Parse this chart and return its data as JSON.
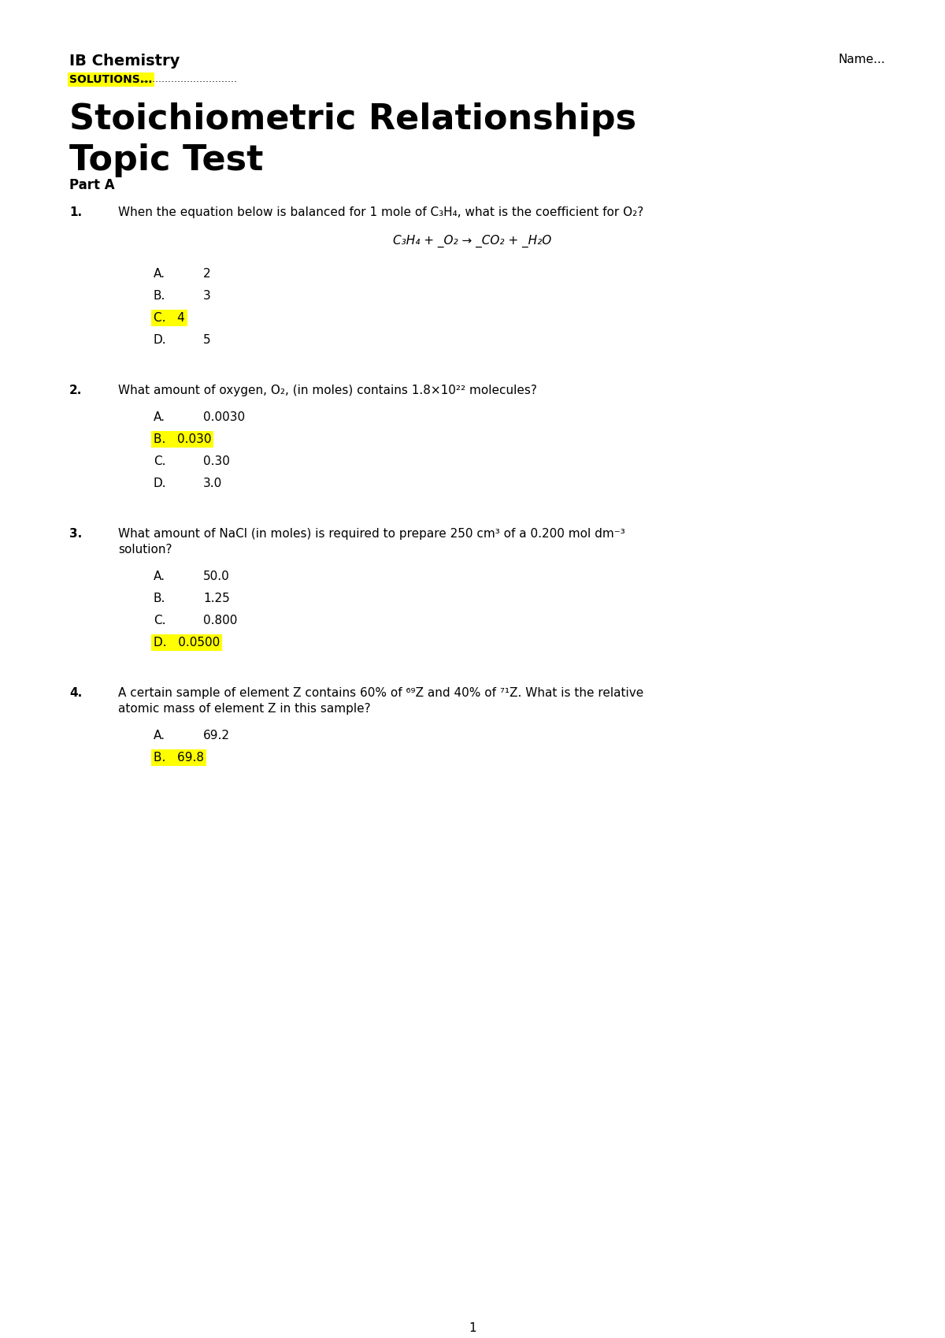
{
  "bg_color": "#ffffff",
  "highlight_color": "#ffff00",
  "header": {
    "ib_chemistry": "IB Chemistry",
    "solutions_highlighted": "SOLUTIONS...",
    "solutions_dots": "...............................",
    "name_label": "Name...",
    "title_line1": "Stoichiometric Relationships",
    "title_line2": "Topic Test",
    "part_a": "Part A"
  },
  "questions": [
    {
      "number": "1.",
      "text": "When the equation below is balanced for 1 mole of C₃H₄, what is the coefficient for O₂?",
      "equation": "C₃H₄ + _O₂ → _CO₂ + _H₂O",
      "has_equation": true,
      "options": [
        {
          "letter": "A.",
          "text": "2",
          "highlight": false
        },
        {
          "letter": "B.",
          "text": "3",
          "highlight": false
        },
        {
          "letter": "C.",
          "text": "4",
          "highlight": true
        },
        {
          "letter": "D.",
          "text": "5",
          "highlight": false
        }
      ]
    },
    {
      "number": "2.",
      "text": "What amount of oxygen, O₂, (in moles) contains 1.8×10²² molecules?",
      "has_equation": false,
      "options": [
        {
          "letter": "A.",
          "text": "0.0030",
          "highlight": false
        },
        {
          "letter": "B.",
          "text": "0.030",
          "highlight": true
        },
        {
          "letter": "C.",
          "text": "0.30",
          "highlight": false
        },
        {
          "letter": "D.",
          "text": "3.0",
          "highlight": false
        }
      ]
    },
    {
      "number": "3.",
      "text": "What amount of NaCl (in moles) is required to prepare 250 cm³ of a 0.200 mol dm⁻³",
      "text2": "solution?",
      "has_equation": false,
      "options": [
        {
          "letter": "A.",
          "text": "50.0",
          "highlight": false
        },
        {
          "letter": "B.",
          "text": "1.25",
          "highlight": false
        },
        {
          "letter": "C.",
          "text": "0.800",
          "highlight": false
        },
        {
          "letter": "D.",
          "text": "0.0500",
          "highlight": true
        }
      ]
    },
    {
      "number": "4.",
      "text": "A certain sample of element Z contains 60% of ⁶⁹Z and 40% of ⁷¹Z. What is the relative",
      "text2": "atomic mass of element Z in this sample?",
      "has_equation": false,
      "options": [
        {
          "letter": "A.",
          "text": "69.2",
          "highlight": false
        },
        {
          "letter": "B.",
          "text": "69.8",
          "highlight": true
        }
      ]
    }
  ],
  "page_number": "1",
  "ib_fontsize": 14,
  "title_fontsize": 32,
  "parta_fontsize": 12,
  "q_fontsize": 11,
  "opt_fontsize": 11,
  "eq_fontsize": 11
}
